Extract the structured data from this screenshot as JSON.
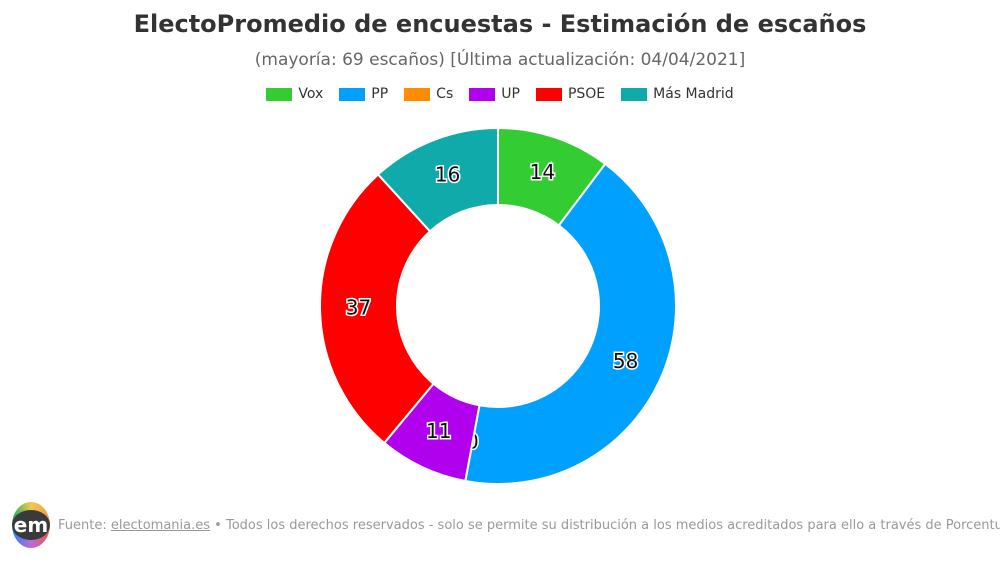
{
  "title": "ElectoPromedio de encuestas - Estimación de escaños",
  "subtitle": "(mayoría: 69 escaños) [Última actualización: 04/04/2021]",
  "chart_data": {
    "type": "pie",
    "donut": true,
    "title": "ElectoPromedio de encuestas - Estimación de escaños",
    "legend_position": "top",
    "categories": [
      "Vox",
      "PP",
      "Cs",
      "UP",
      "PSOE",
      "Más Madrid"
    ],
    "values": [
      14,
      58,
      0,
      11,
      37,
      16
    ],
    "colors": [
      "#33cc33",
      "#00a0ff",
      "#ff8c00",
      "#b000ee",
      "#ff0000",
      "#11aaaa"
    ]
  },
  "footer": {
    "logo_text": "em",
    "prefix": "Fuente: ",
    "link": "electomania.es",
    "rest": " • Todos los derechos reservados - solo se permite su distribución a los medios acreditados para ello a través de Porcentual.es"
  }
}
